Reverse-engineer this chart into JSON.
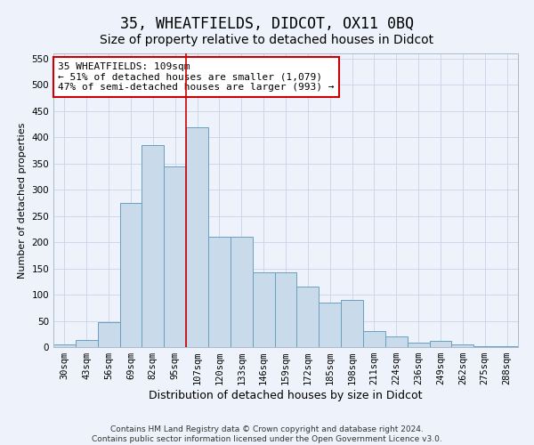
{
  "title": "35, WHEATFIELDS, DIDCOT, OX11 0BQ",
  "subtitle": "Size of property relative to detached houses in Didcot",
  "xlabel": "Distribution of detached houses by size in Didcot",
  "ylabel": "Number of detached properties",
  "categories": [
    "30sqm",
    "43sqm",
    "56sqm",
    "69sqm",
    "82sqm",
    "95sqm",
    "107sqm",
    "120sqm",
    "133sqm",
    "146sqm",
    "159sqm",
    "172sqm",
    "185sqm",
    "198sqm",
    "211sqm",
    "224sqm",
    "236sqm",
    "249sqm",
    "262sqm",
    "275sqm",
    "288sqm"
  ],
  "values": [
    5,
    13,
    48,
    275,
    385,
    345,
    420,
    210,
    210,
    143,
    143,
    115,
    85,
    90,
    30,
    20,
    8,
    12,
    5,
    2,
    2
  ],
  "bar_color": "#c9daea",
  "bar_edge_color": "#6a9fc0",
  "bar_width": 1.0,
  "grid_color": "#c8d4e8",
  "background_color": "#eef2fb",
  "vline_x": 6.0,
  "vline_color": "#cc0000",
  "annotation_text": "35 WHEATFIELDS: 109sqm\n← 51% of detached houses are smaller (1,079)\n47% of semi-detached houses are larger (993) →",
  "annotation_box_color": "#ffffff",
  "annotation_box_edge": "#cc0000",
  "ylim": [
    0,
    560
  ],
  "yticks": [
    0,
    50,
    100,
    150,
    200,
    250,
    300,
    350,
    400,
    450,
    500,
    550
  ],
  "footer": "Contains HM Land Registry data © Crown copyright and database right 2024.\nContains public sector information licensed under the Open Government Licence v3.0.",
  "title_fontsize": 12,
  "subtitle_fontsize": 10,
  "xlabel_fontsize": 9,
  "ylabel_fontsize": 8,
  "tick_fontsize": 7.5,
  "annotation_fontsize": 8,
  "footer_fontsize": 6.5
}
